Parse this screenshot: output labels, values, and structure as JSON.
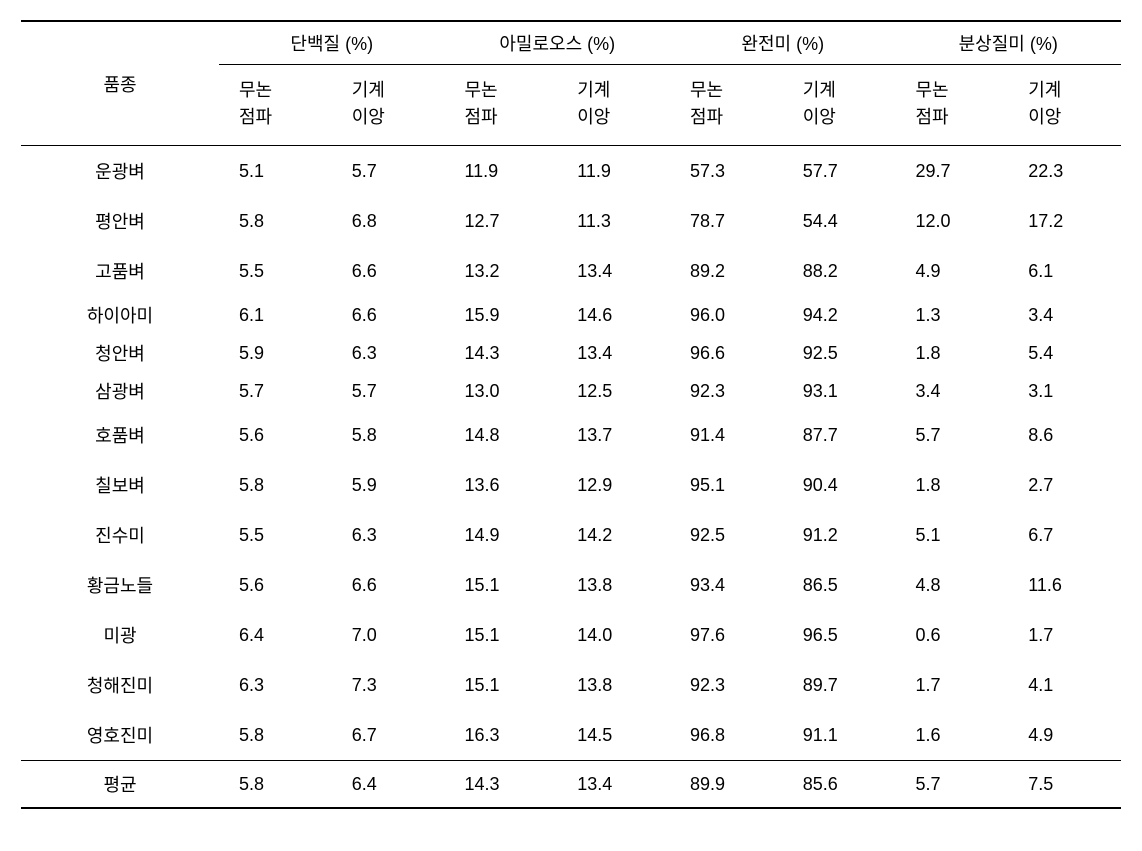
{
  "table": {
    "headers": {
      "variety": "품종",
      "groups": [
        {
          "label": "단백질 (%)"
        },
        {
          "label": "아밀로오스 (%)"
        },
        {
          "label": "완전미 (%)"
        },
        {
          "label": "분상질미 (%)"
        }
      ],
      "sub1_line1": "무논",
      "sub1_line2": "점파",
      "sub2_line1": "기계",
      "sub2_line2": "이앙"
    },
    "rows": [
      {
        "variety": "운광벼",
        "values": [
          "5.1",
          "5.7",
          "11.9",
          "11.9",
          "57.3",
          "57.7",
          "29.7",
          "22.3"
        ],
        "tight": false
      },
      {
        "variety": "평안벼",
        "values": [
          "5.8",
          "6.8",
          "12.7",
          "11.3",
          "78.7",
          "54.4",
          "12.0",
          "17.2"
        ],
        "tight": false
      },
      {
        "variety": "고품벼",
        "values": [
          "5.5",
          "6.6",
          "13.2",
          "13.4",
          "89.2",
          "88.2",
          "4.9",
          "6.1"
        ],
        "tight": false
      },
      {
        "variety": "하이아미",
        "values": [
          "6.1",
          "6.6",
          "15.9",
          "14.6",
          "96.0",
          "94.2",
          "1.3",
          "3.4"
        ],
        "tight": true
      },
      {
        "variety": "청안벼",
        "values": [
          "5.9",
          "6.3",
          "14.3",
          "13.4",
          "96.6",
          "92.5",
          "1.8",
          "5.4"
        ],
        "tight": true
      },
      {
        "variety": "삼광벼",
        "values": [
          "5.7",
          "5.7",
          "13.0",
          "12.5",
          "92.3",
          "93.1",
          "3.4",
          "3.1"
        ],
        "tight": true
      },
      {
        "variety": "호품벼",
        "values": [
          "5.6",
          "5.8",
          "14.8",
          "13.7",
          "91.4",
          "87.7",
          "5.7",
          "8.6"
        ],
        "tight": false
      },
      {
        "variety": "칠보벼",
        "values": [
          "5.8",
          "5.9",
          "13.6",
          "12.9",
          "95.1",
          "90.4",
          "1.8",
          "2.7"
        ],
        "tight": false
      },
      {
        "variety": "진수미",
        "values": [
          "5.5",
          "6.3",
          "14.9",
          "14.2",
          "92.5",
          "91.2",
          "5.1",
          "6.7"
        ],
        "tight": false
      },
      {
        "variety": "황금노들",
        "values": [
          "5.6",
          "6.6",
          "15.1",
          "13.8",
          "93.4",
          "86.5",
          "4.8",
          "11.6"
        ],
        "tight": false
      },
      {
        "variety": "미광",
        "values": [
          "6.4",
          "7.0",
          "15.1",
          "14.0",
          "97.6",
          "96.5",
          "0.6",
          "1.7"
        ],
        "tight": false
      },
      {
        "variety": "청해진미",
        "values": [
          "6.3",
          "7.3",
          "15.1",
          "13.8",
          "92.3",
          "89.7",
          "1.7",
          "4.1"
        ],
        "tight": false
      },
      {
        "variety": "영호진미",
        "values": [
          "5.8",
          "6.7",
          "16.3",
          "14.5",
          "96.8",
          "91.1",
          "1.6",
          "4.9"
        ],
        "tight": false
      }
    ],
    "average": {
      "variety": "평균",
      "values": [
        "5.8",
        "6.4",
        "14.3",
        "13.4",
        "89.9",
        "85.6",
        "5.7",
        "7.5"
      ]
    },
    "styling": {
      "border_color": "#000000",
      "background": "#ffffff",
      "text_color": "#000000",
      "font_size_pt": 14,
      "border_width_thick": 2,
      "border_width_thin": 1.5
    }
  }
}
